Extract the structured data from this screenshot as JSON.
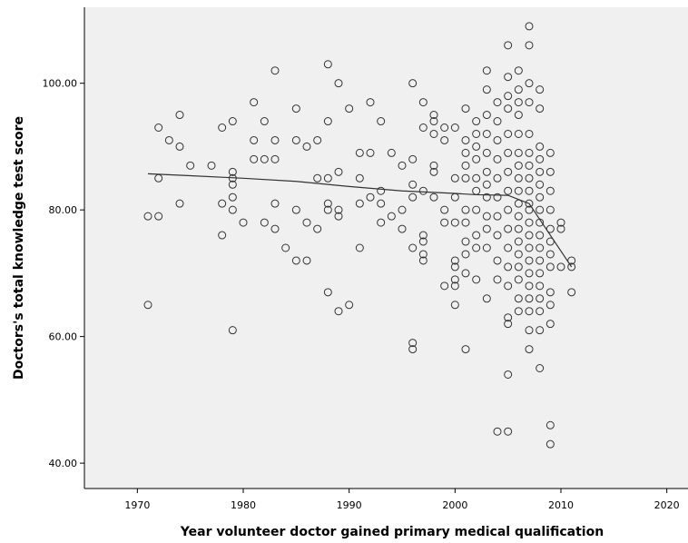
{
  "chart_data": {
    "type": "scatter",
    "title": "",
    "xlabel": "Year volunteer doctor gained primary medical qualification",
    "ylabel": "Doctors's total knowledge test score",
    "xlim": [
      1965,
      2022
    ],
    "ylim": [
      36,
      112
    ],
    "xticks": [
      1970,
      1980,
      1990,
      2000,
      2010,
      2020
    ],
    "xtick_labels": [
      "1970",
      "1980",
      "1990",
      "2000",
      "2010",
      "2020"
    ],
    "yticks": [
      40,
      60,
      80,
      100
    ],
    "ytick_labels": [
      "40.00",
      "60.00",
      "80.00",
      "100.00"
    ],
    "grid": false,
    "plot_background": "#f0f0f0",
    "point_color": "#333333",
    "point_style": "open-circle",
    "fit_line": {
      "name": "",
      "points": [
        [
          1971,
          85.7
        ],
        [
          1975,
          85.4
        ],
        [
          1980,
          85.0
        ],
        [
          1985,
          84.5
        ],
        [
          1990,
          83.7
        ],
        [
          1995,
          83.0
        ],
        [
          2000,
          82.6
        ],
        [
          2002,
          82.4
        ],
        [
          2005,
          82.3
        ],
        [
          2007,
          81.0
        ],
        [
          2009,
          76.0
        ],
        [
          2011,
          71.0
        ]
      ]
    },
    "points": [
      [
        1971,
        79
      ],
      [
        1971,
        65
      ],
      [
        1972,
        93
      ],
      [
        1972,
        85
      ],
      [
        1972,
        79
      ],
      [
        1973,
        91
      ],
      [
        1974,
        95
      ],
      [
        1974,
        90
      ],
      [
        1974,
        81
      ],
      [
        1975,
        87
      ],
      [
        1977,
        87
      ],
      [
        1978,
        93
      ],
      [
        1978,
        81
      ],
      [
        1978,
        76
      ],
      [
        1979,
        94
      ],
      [
        1979,
        86
      ],
      [
        1979,
        85
      ],
      [
        1979,
        84
      ],
      [
        1979,
        82
      ],
      [
        1979,
        80
      ],
      [
        1979,
        61
      ],
      [
        1980,
        78
      ],
      [
        1981,
        97
      ],
      [
        1981,
        91
      ],
      [
        1981,
        88
      ],
      [
        1982,
        94
      ],
      [
        1982,
        88
      ],
      [
        1982,
        78
      ],
      [
        1983,
        102
      ],
      [
        1983,
        91
      ],
      [
        1983,
        88
      ],
      [
        1983,
        81
      ],
      [
        1983,
        77
      ],
      [
        1984,
        74
      ],
      [
        1985,
        96
      ],
      [
        1985,
        91
      ],
      [
        1985,
        80
      ],
      [
        1985,
        72
      ],
      [
        1986,
        90
      ],
      [
        1986,
        78
      ],
      [
        1986,
        72
      ],
      [
        1987,
        91
      ],
      [
        1987,
        85
      ],
      [
        1987,
        77
      ],
      [
        1988,
        103
      ],
      [
        1988,
        94
      ],
      [
        1988,
        85
      ],
      [
        1988,
        81
      ],
      [
        1988,
        80
      ],
      [
        1988,
        67
      ],
      [
        1989,
        100
      ],
      [
        1989,
        86
      ],
      [
        1989,
        80
      ],
      [
        1989,
        79
      ],
      [
        1989,
        64
      ],
      [
        1990,
        96
      ],
      [
        1990,
        65
      ],
      [
        1991,
        89
      ],
      [
        1991,
        85
      ],
      [
        1991,
        81
      ],
      [
        1991,
        74
      ],
      [
        1992,
        97
      ],
      [
        1992,
        89
      ],
      [
        1992,
        82
      ],
      [
        1993,
        94
      ],
      [
        1993,
        83
      ],
      [
        1993,
        81
      ],
      [
        1993,
        78
      ],
      [
        1994,
        89
      ],
      [
        1994,
        79
      ],
      [
        1995,
        87
      ],
      [
        1995,
        80
      ],
      [
        1995,
        77
      ],
      [
        1996,
        100
      ],
      [
        1996,
        88
      ],
      [
        1996,
        84
      ],
      [
        1996,
        82
      ],
      [
        1996,
        74
      ],
      [
        1996,
        59
      ],
      [
        1996,
        58
      ],
      [
        1997,
        97
      ],
      [
        1997,
        93
      ],
      [
        1997,
        83
      ],
      [
        1997,
        76
      ],
      [
        1997,
        75
      ],
      [
        1997,
        73
      ],
      [
        1997,
        72
      ],
      [
        1998,
        95
      ],
      [
        1998,
        94
      ],
      [
        1998,
        92
      ],
      [
        1998,
        87
      ],
      [
        1998,
        86
      ],
      [
        1998,
        82
      ],
      [
        1999,
        93
      ],
      [
        1999,
        91
      ],
      [
        1999,
        80
      ],
      [
        1999,
        78
      ],
      [
        1999,
        68
      ],
      [
        2000,
        93
      ],
      [
        2000,
        85
      ],
      [
        2000,
        82
      ],
      [
        2000,
        78
      ],
      [
        2000,
        72
      ],
      [
        2000,
        71
      ],
      [
        2000,
        69
      ],
      [
        2000,
        68
      ],
      [
        2000,
        65
      ],
      [
        2001,
        96
      ],
      [
        2001,
        91
      ],
      [
        2001,
        89
      ],
      [
        2001,
        87
      ],
      [
        2001,
        85
      ],
      [
        2001,
        80
      ],
      [
        2001,
        78
      ],
      [
        2001,
        75
      ],
      [
        2001,
        73
      ],
      [
        2001,
        70
      ],
      [
        2001,
        58
      ],
      [
        2002,
        94
      ],
      [
        2002,
        92
      ],
      [
        2002,
        90
      ],
      [
        2002,
        88
      ],
      [
        2002,
        85
      ],
      [
        2002,
        83
      ],
      [
        2002,
        80
      ],
      [
        2002,
        76
      ],
      [
        2002,
        74
      ],
      [
        2002,
        69
      ],
      [
        2003,
        102
      ],
      [
        2003,
        99
      ],
      [
        2003,
        95
      ],
      [
        2003,
        92
      ],
      [
        2003,
        89
      ],
      [
        2003,
        86
      ],
      [
        2003,
        84
      ],
      [
        2003,
        82
      ],
      [
        2003,
        79
      ],
      [
        2003,
        77
      ],
      [
        2003,
        74
      ],
      [
        2003,
        66
      ],
      [
        2004,
        97
      ],
      [
        2004,
        94
      ],
      [
        2004,
        91
      ],
      [
        2004,
        88
      ],
      [
        2004,
        85
      ],
      [
        2004,
        82
      ],
      [
        2004,
        79
      ],
      [
        2004,
        76
      ],
      [
        2004,
        72
      ],
      [
        2004,
        69
      ],
      [
        2004,
        45
      ],
      [
        2005,
        106
      ],
      [
        2005,
        101
      ],
      [
        2005,
        98
      ],
      [
        2005,
        96
      ],
      [
        2005,
        92
      ],
      [
        2005,
        89
      ],
      [
        2005,
        86
      ],
      [
        2005,
        83
      ],
      [
        2005,
        80
      ],
      [
        2005,
        77
      ],
      [
        2005,
        74
      ],
      [
        2005,
        71
      ],
      [
        2005,
        68
      ],
      [
        2005,
        63
      ],
      [
        2005,
        62
      ],
      [
        2005,
        54
      ],
      [
        2005,
        45
      ],
      [
        2006,
        102
      ],
      [
        2006,
        99
      ],
      [
        2006,
        97
      ],
      [
        2006,
        95
      ],
      [
        2006,
        92
      ],
      [
        2006,
        89
      ],
      [
        2006,
        87
      ],
      [
        2006,
        85
      ],
      [
        2006,
        83
      ],
      [
        2006,
        81
      ],
      [
        2006,
        79
      ],
      [
        2006,
        77
      ],
      [
        2006,
        75
      ],
      [
        2006,
        73
      ],
      [
        2006,
        71
      ],
      [
        2006,
        69
      ],
      [
        2006,
        66
      ],
      [
        2006,
        64
      ],
      [
        2007,
        109
      ],
      [
        2007,
        106
      ],
      [
        2007,
        100
      ],
      [
        2007,
        97
      ],
      [
        2007,
        92
      ],
      [
        2007,
        89
      ],
      [
        2007,
        87
      ],
      [
        2007,
        85
      ],
      [
        2007,
        83
      ],
      [
        2007,
        81
      ],
      [
        2007,
        80
      ],
      [
        2007,
        78
      ],
      [
        2007,
        76
      ],
      [
        2007,
        74
      ],
      [
        2007,
        72
      ],
      [
        2007,
        70
      ],
      [
        2007,
        68
      ],
      [
        2007,
        66
      ],
      [
        2007,
        64
      ],
      [
        2007,
        61
      ],
      [
        2007,
        58
      ],
      [
        2008,
        99
      ],
      [
        2008,
        96
      ],
      [
        2008,
        90
      ],
      [
        2008,
        88
      ],
      [
        2008,
        86
      ],
      [
        2008,
        84
      ],
      [
        2008,
        82
      ],
      [
        2008,
        80
      ],
      [
        2008,
        78
      ],
      [
        2008,
        76
      ],
      [
        2008,
        74
      ],
      [
        2008,
        72
      ],
      [
        2008,
        70
      ],
      [
        2008,
        68
      ],
      [
        2008,
        66
      ],
      [
        2008,
        64
      ],
      [
        2008,
        61
      ],
      [
        2008,
        55
      ],
      [
        2009,
        89
      ],
      [
        2009,
        86
      ],
      [
        2009,
        83
      ],
      [
        2009,
        80
      ],
      [
        2009,
        77
      ],
      [
        2009,
        75
      ],
      [
        2009,
        73
      ],
      [
        2009,
        71
      ],
      [
        2009,
        67
      ],
      [
        2009,
        65
      ],
      [
        2009,
        62
      ],
      [
        2009,
        46
      ],
      [
        2009,
        43
      ],
      [
        2010,
        78
      ],
      [
        2010,
        77
      ],
      [
        2010,
        71
      ],
      [
        2011,
        72
      ],
      [
        2011,
        71
      ],
      [
        2011,
        67
      ]
    ]
  }
}
